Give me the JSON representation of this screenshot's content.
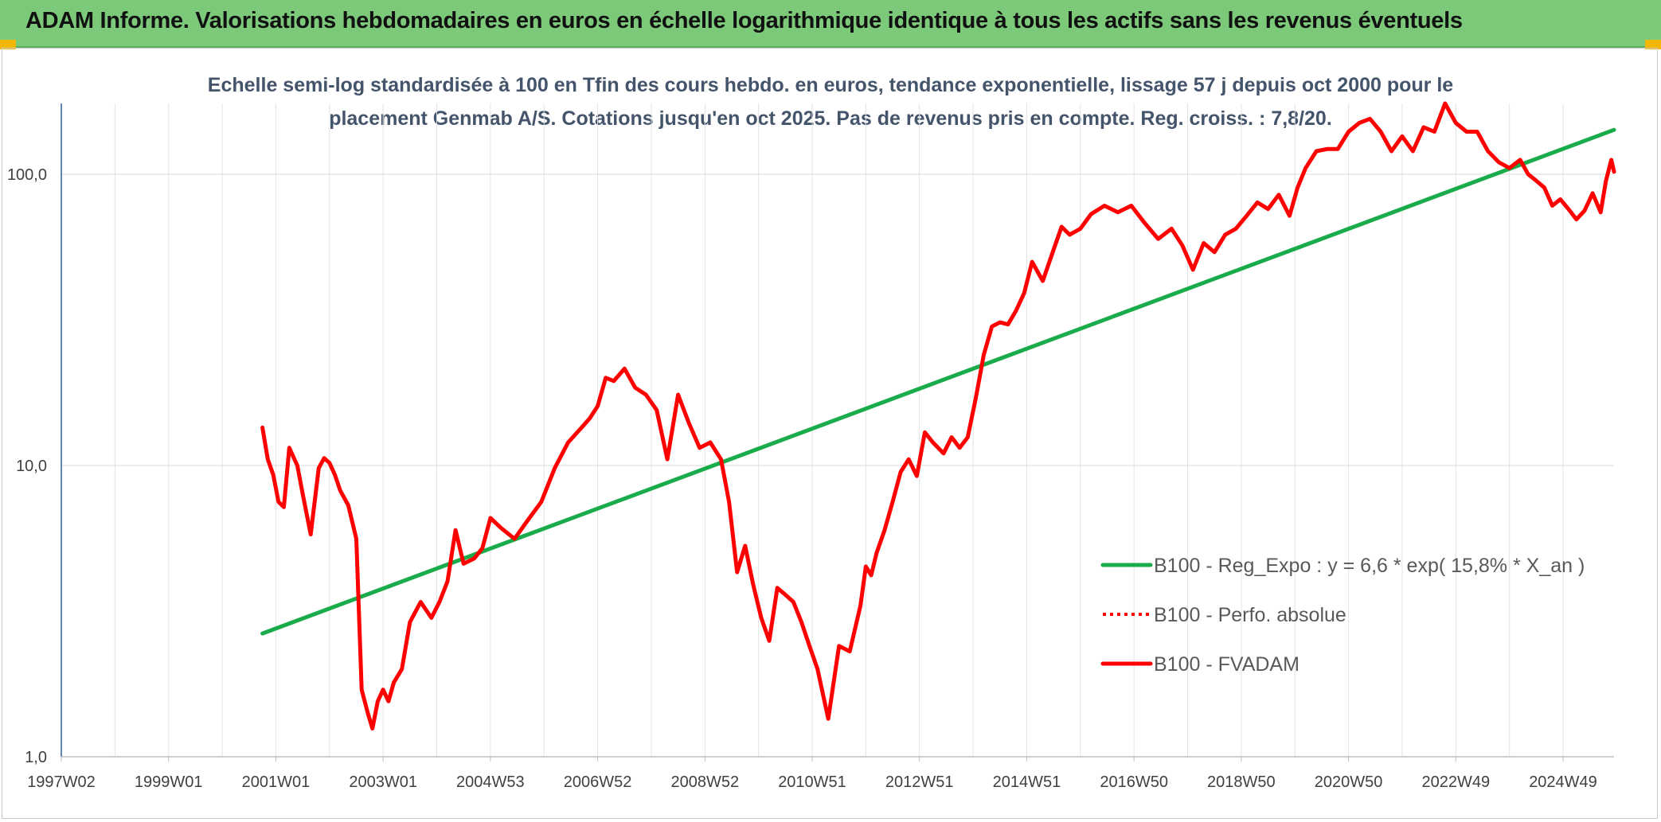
{
  "banner": {
    "title": "ADAM Informe. Valorisations hebdomadaires en euros en échelle logarithmique identique à tous les actifs sans les revenus éventuels",
    "background": "#7dc97a",
    "corner_color": "#f2b705"
  },
  "chart_data": {
    "type": "line",
    "title_lines": [
      "Echelle semi-log standardisée à 100 en Tfin des cours hebdo. en euros, tendance exponentielle, lissage 57 j depuis oct 2000 pour le",
      "placement Genmab A/S. Cotations jusqu'en oct 2025. Pas de revenus pris en compte. Reg. croiss. : 7,8/20."
    ],
    "y_scale": "log",
    "ylim": [
      1,
      175
    ],
    "y_ticks": [
      {
        "value": 1,
        "label": "1,0"
      },
      {
        "value": 10,
        "label": "10,0"
      },
      {
        "value": 100,
        "label": "100,0"
      }
    ],
    "xlim": [
      1997.0,
      2025.95
    ],
    "x_ticks": [
      {
        "value": 1997.0,
        "label": "1997W02"
      },
      {
        "value": 1999.0,
        "label": "1999W01"
      },
      {
        "value": 2001.0,
        "label": "2001W01"
      },
      {
        "value": 2003.0,
        "label": "2003W01"
      },
      {
        "value": 2005.0,
        "label": "2004W53"
      },
      {
        "value": 2007.0,
        "label": "2006W52"
      },
      {
        "value": 2009.0,
        "label": "2008W52"
      },
      {
        "value": 2011.0,
        "label": "2010W51"
      },
      {
        "value": 2013.0,
        "label": "2012W51"
      },
      {
        "value": 2015.0,
        "label": "2014W51"
      },
      {
        "value": 2017.0,
        "label": "2016W50"
      },
      {
        "value": 2019.0,
        "label": "2018W50"
      },
      {
        "value": 2021.0,
        "label": "2020W50"
      },
      {
        "value": 2023.0,
        "label": "2022W49"
      },
      {
        "value": 2025.0,
        "label": "2024W49"
      }
    ],
    "grid": "vertical and horizontal",
    "legend_position": "bottom-right inside plot",
    "series": [
      {
        "name": "B100 - Reg_Expo : y = 6,6 * exp( 15,8% *  X_an )",
        "color": "#1aab4b",
        "style": "solid",
        "x": [
          2000.75,
          2025.95
        ],
        "y": [
          2.65,
          142
        ]
      },
      {
        "name": "B100 - Perfo. absolue",
        "color": "#ff0000",
        "style": "dotted",
        "x": [],
        "y": []
      },
      {
        "name": "B100 - FVADAM",
        "color": "#ff0000",
        "style": "solid",
        "x": [
          2000.75,
          2000.85,
          2000.95,
          2001.05,
          2001.15,
          2001.25,
          2001.4,
          2001.5,
          2001.65,
          2001.8,
          2001.9,
          2002.0,
          2002.1,
          2002.2,
          2002.35,
          2002.5,
          2002.6,
          2002.72,
          2002.8,
          2002.9,
          2003.0,
          2003.1,
          2003.2,
          2003.35,
          2003.5,
          2003.7,
          2003.9,
          2004.05,
          2004.2,
          2004.35,
          2004.5,
          2004.7,
          2004.85,
          2005.0,
          2005.2,
          2005.45,
          2005.7,
          2005.95,
          2006.2,
          2006.45,
          2006.7,
          2006.85,
          2007.0,
          2007.15,
          2007.3,
          2007.5,
          2007.7,
          2007.9,
          2008.1,
          2008.3,
          2008.5,
          2008.7,
          2008.9,
          2009.1,
          2009.3,
          2009.45,
          2009.6,
          2009.75,
          2009.9,
          2010.05,
          2010.2,
          2010.35,
          2010.5,
          2010.65,
          2010.8,
          2010.95,
          2011.1,
          2011.3,
          2011.5,
          2011.7,
          2011.9,
          2012.0,
          2012.1,
          2012.2,
          2012.35,
          2012.5,
          2012.65,
          2012.8,
          2012.95,
          2013.1,
          2013.25,
          2013.45,
          2013.6,
          2013.75,
          2013.9,
          2014.05,
          2014.2,
          2014.35,
          2014.5,
          2014.65,
          2014.8,
          2014.95,
          2015.1,
          2015.3,
          2015.5,
          2015.65,
          2015.8,
          2016.0,
          2016.2,
          2016.45,
          2016.7,
          2016.95,
          2017.2,
          2017.45,
          2017.7,
          2017.9,
          2018.1,
          2018.3,
          2018.5,
          2018.7,
          2018.9,
          2019.1,
          2019.3,
          2019.5,
          2019.7,
          2019.9,
          2020.05,
          2020.2,
          2020.4,
          2020.6,
          2020.8,
          2021.0,
          2021.2,
          2021.4,
          2021.6,
          2021.8,
          2022.0,
          2022.2,
          2022.4,
          2022.6,
          2022.8,
          2023.0,
          2023.2,
          2023.4,
          2023.6,
          2023.8,
          2024.0,
          2024.2,
          2024.35,
          2024.5,
          2024.65,
          2024.8,
          2024.95,
          2025.1,
          2025.25,
          2025.4,
          2025.55,
          2025.7,
          2025.8,
          2025.9,
          2025.95
        ],
        "y": [
          13.5,
          10.5,
          9.3,
          7.5,
          7.2,
          11.5,
          10.0,
          8.0,
          5.8,
          9.8,
          10.6,
          10.2,
          9.3,
          8.2,
          7.3,
          5.6,
          1.7,
          1.4,
          1.25,
          1.55,
          1.7,
          1.55,
          1.8,
          2.0,
          2.9,
          3.4,
          3.0,
          3.4,
          4.0,
          6.0,
          4.6,
          4.8,
          5.2,
          6.6,
          6.1,
          5.6,
          6.5,
          7.5,
          9.8,
          12.0,
          13.5,
          14.5,
          16.0,
          20.0,
          19.5,
          21.5,
          18.5,
          17.5,
          15.5,
          10.5,
          17.5,
          14.0,
          11.5,
          12.0,
          10.5,
          7.5,
          4.3,
          5.3,
          3.9,
          3.0,
          2.5,
          3.8,
          3.6,
          3.4,
          2.9,
          2.4,
          2.0,
          1.35,
          2.4,
          2.3,
          3.3,
          4.5,
          4.2,
          5.0,
          6.0,
          7.5,
          9.5,
          10.5,
          9.2,
          13.0,
          12.0,
          11.0,
          12.5,
          11.5,
          12.5,
          17.0,
          24.0,
          30.0,
          31.0,
          30.5,
          34.0,
          39.0,
          50.0,
          43.0,
          55.0,
          66.0,
          62.0,
          65.0,
          73.0,
          78.0,
          74.0,
          78.0,
          68.0,
          60.0,
          65.0,
          57.0,
          47.0,
          58.0,
          54.0,
          62.0,
          65.0,
          72.0,
          80.0,
          76.0,
          85.0,
          72.0,
          90.0,
          105.0,
          120.0,
          122.0,
          122.0,
          140.0,
          150.0,
          155.0,
          140.0,
          120.0,
          135.0,
          120.0,
          145.0,
          140.0,
          175.0,
          150.0,
          140.0,
          140.0,
          120.0,
          110.0,
          105.0,
          112.0,
          100.0,
          95.0,
          90.0,
          78.0,
          82.0,
          76.0,
          70.0,
          75.0,
          86.0,
          74.0,
          95.0,
          112.0,
          102.0
        ]
      }
    ]
  }
}
